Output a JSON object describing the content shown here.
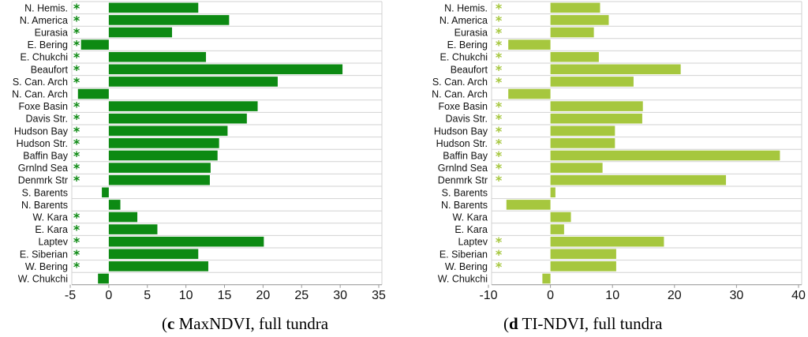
{
  "categories": [
    "N. Hemis.",
    "N. America",
    "Eurasia",
    "E. Bering",
    "E. Chukchi",
    "Beaufort",
    "S. Can. Arch",
    "N. Can. Arch",
    "Foxe Basin",
    "Davis Str.",
    "Hudson Bay",
    "Hudson Str.",
    "Baffin Bay",
    "Grnlnd Sea",
    "Denmrk Str",
    "S. Barents",
    "N. Barents",
    "W. Kara",
    "E. Kara",
    "Laptev",
    "E. Siberian",
    "W. Bering",
    "W. Chukchi"
  ],
  "captions": [
    {
      "letter": "c",
      "text": " MaxNDVI, full tundra"
    },
    {
      "letter": "d",
      "text": " TI-NDVI, full tundra"
    }
  ],
  "chart_data": [
    {
      "type": "bar",
      "orientation": "horizontal",
      "color": "#0d8a13",
      "categories": [
        "N. Hemis.",
        "N. America",
        "Eurasia",
        "E. Bering",
        "E. Chukchi",
        "Beaufort",
        "S. Can. Arch",
        "N. Can. Arch",
        "Foxe Basin",
        "Davis Str.",
        "Hudson Bay",
        "Hudson Str.",
        "Baffin Bay",
        "Grnlnd Sea",
        "Denmrk Str",
        "S. Barents",
        "N. Barents",
        "W. Kara",
        "E. Kara",
        "Laptev",
        "E. Siberian",
        "W. Bering",
        "W. Chukchi"
      ],
      "values": [
        11.6,
        15.6,
        8.2,
        -3.6,
        12.6,
        30.3,
        21.9,
        -4.0,
        19.3,
        17.9,
        15.4,
        14.3,
        14.1,
        13.2,
        13.1,
        -0.9,
        1.5,
        3.7,
        6.3,
        20.1,
        11.6,
        12.9,
        -1.4
      ],
      "significant": [
        true,
        true,
        true,
        true,
        true,
        true,
        true,
        false,
        true,
        true,
        true,
        true,
        true,
        true,
        true,
        false,
        false,
        true,
        true,
        true,
        true,
        true,
        false
      ],
      "marker": "*",
      "xlim": [
        -5,
        35
      ],
      "xticks": [
        "-5",
        "0",
        "5",
        "10",
        "15",
        "20",
        "25",
        "30",
        "35"
      ],
      "grid": true
    },
    {
      "type": "bar",
      "orientation": "horizontal",
      "color": "#a6c73e",
      "categories": [
        "N. Hemis.",
        "N. America",
        "Eurasia",
        "E. Bering",
        "E. Chukchi",
        "Beaufort",
        "S. Can. Arch",
        "N. Can. Arch",
        "Foxe Basin",
        "Davis Str.",
        "Hudson Bay",
        "Hudson Str.",
        "Baffin Bay",
        "Grnlnd Sea",
        "Denmrk Str",
        "S. Barents",
        "N. Barents",
        "W. Kara",
        "E. Kara",
        "Laptev",
        "E. Siberian",
        "W. Bering",
        "W. Chukchi"
      ],
      "values": [
        8.0,
        9.4,
        7.0,
        -6.8,
        7.8,
        21.0,
        13.4,
        -6.8,
        14.9,
        14.8,
        10.4,
        10.4,
        37.0,
        8.4,
        28.3,
        0.8,
        -7.1,
        3.3,
        2.2,
        18.3,
        10.6,
        10.6,
        -1.3
      ],
      "significant": [
        true,
        true,
        true,
        true,
        true,
        true,
        true,
        false,
        true,
        true,
        true,
        true,
        true,
        true,
        true,
        false,
        false,
        false,
        false,
        true,
        true,
        true,
        false
      ],
      "marker": "*",
      "xlim": [
        -10,
        40
      ],
      "xticks": [
        "-10",
        "0",
        "10",
        "20",
        "30",
        "40"
      ],
      "grid": true
    }
  ]
}
